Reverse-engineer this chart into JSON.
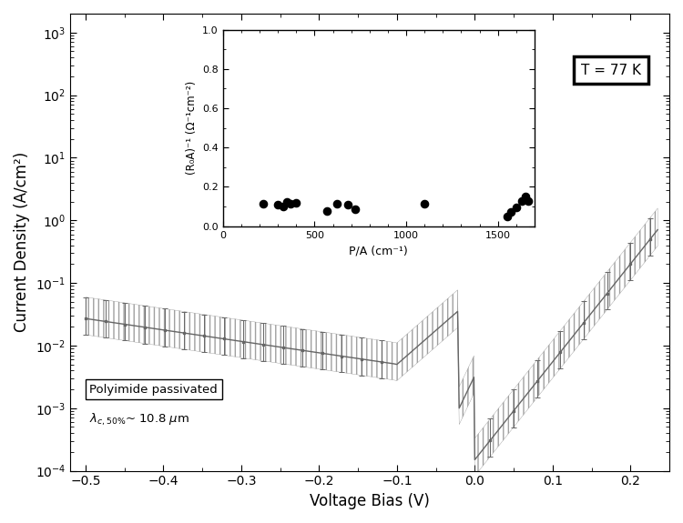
{
  "xlabel": "Voltage Bias (V)",
  "ylabel": "Current Density (A/cm²)",
  "xlim": [
    -0.52,
    0.25
  ],
  "ylim": [
    0.0001,
    2000.0
  ],
  "xticks": [
    -0.5,
    -0.4,
    -0.3,
    -0.2,
    -0.1,
    0.0,
    0.1,
    0.2
  ],
  "bg_color": "#f0f0f0",
  "main_line_color": "#666666",
  "T_label": "T = 77 K",
  "inset": {
    "xlabel": "P/A (cm⁻¹)",
    "ylabel": "(R₀A)⁻¹ (Ω⁻¹cm⁻²)",
    "xlim": [
      0,
      1700
    ],
    "ylim": [
      0.0,
      1.0
    ],
    "xticks": [
      0,
      500,
      1000,
      1500
    ],
    "yticks": [
      0.0,
      0.2,
      0.4,
      0.6,
      0.8,
      1.0
    ],
    "scatter_x": [
      220,
      300,
      330,
      350,
      370,
      400,
      570,
      620,
      680,
      720,
      1100,
      1550,
      1570,
      1600,
      1630,
      1650,
      1665
    ],
    "scatter_y": [
      0.115,
      0.108,
      0.102,
      0.122,
      0.112,
      0.118,
      0.075,
      0.112,
      0.108,
      0.088,
      0.112,
      0.05,
      0.072,
      0.098,
      0.128,
      0.152,
      0.128
    ]
  }
}
